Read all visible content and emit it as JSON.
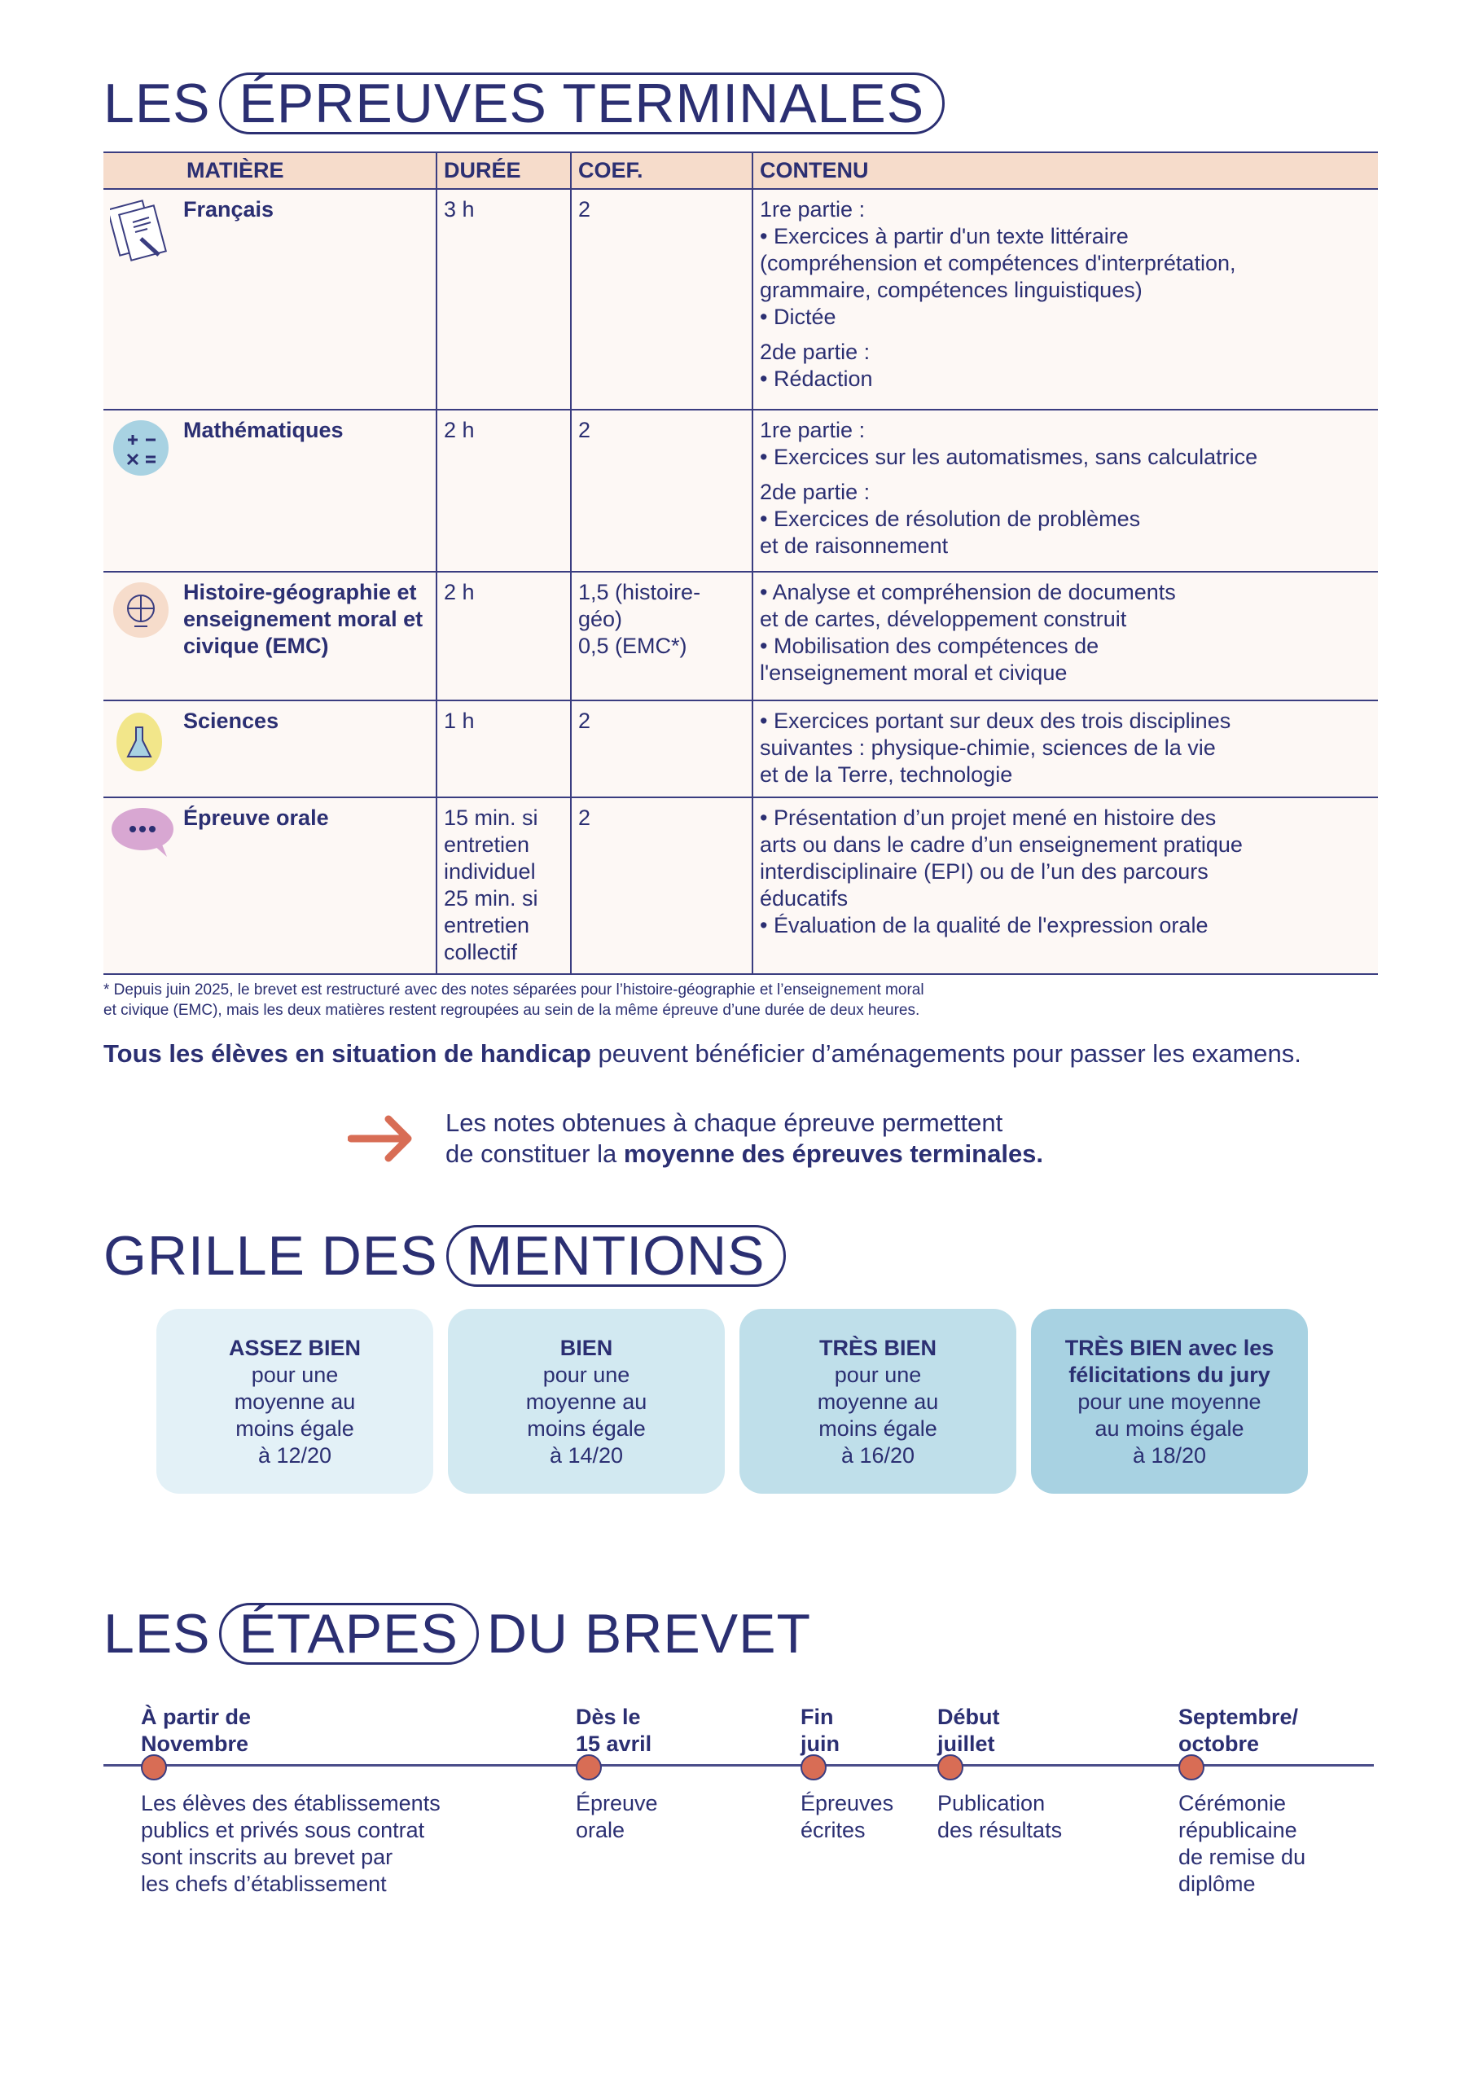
{
  "section1": {
    "prefix": "LES",
    "pill": "ÉPREUVES TERMINALES"
  },
  "table": {
    "headers": [
      "MATIÈRE",
      "DURÉE",
      "COEF.",
      "CONTENU"
    ],
    "rows": [
      {
        "icon": "document-pencil-icon",
        "subject": "Français",
        "duree": [
          "3 h"
        ],
        "coef": [
          "2"
        ],
        "content": [
          [
            "1re partie :",
            "• Exercices à partir d'un texte littéraire",
            "(compréhension et compétences d'interprétation,",
            "grammaire, compétences linguistiques)",
            "• Dictée"
          ],
          [
            "2de partie :",
            "• Rédaction"
          ]
        ]
      },
      {
        "icon": "math-operators-icon",
        "subject": "Mathématiques",
        "duree": [
          "2 h"
        ],
        "coef": [
          "2"
        ],
        "content": [
          [
            "1re partie :",
            "• Exercices sur les automatismes, sans calculatrice"
          ],
          [
            "2de partie :",
            "• Exercices de résolution de problèmes",
            "et de raisonnement"
          ]
        ]
      },
      {
        "icon": "globe-icon",
        "subject": "Histoire-géographie et enseignement moral et civique (EMC)",
        "duree": [
          "2 h"
        ],
        "coef": [
          "1,5 (histoire-",
          "géo)",
          "0,5 (EMC*)"
        ],
        "content": [
          [
            "• Analyse et compréhension de documents",
            "et de cartes, développement construit",
            "• Mobilisation des compétences de",
            "l'enseignement moral et civique"
          ]
        ]
      },
      {
        "icon": "flask-icon",
        "subject": "Sciences",
        "duree": [
          "1 h"
        ],
        "coef": [
          "2"
        ],
        "content": [
          [
            "• Exercices portant sur deux des trois disciplines",
            "suivantes : physique-chimie, sciences de la vie",
            "et de la Terre, technologie"
          ]
        ]
      },
      {
        "icon": "speech-bubble-icon",
        "subject": "Épreuve orale",
        "duree": [
          "15 min. si",
          "entretien",
          "individuel",
          "25 min. si",
          "entretien",
          "collectif"
        ],
        "coef": [
          "2"
        ],
        "content": [
          [
            "• Présentation d’un projet mené en histoire des",
            "arts ou dans le cadre d’un enseignement pratique",
            "interdisciplinaire (EPI) ou de l’un des parcours",
            "éducatifs",
            "• Évaluation de la qualité de l'expression orale"
          ]
        ]
      }
    ]
  },
  "footnote": [
    "* Depuis juin 2025, le brevet est restructuré avec des notes séparées pour l’histoire-géographie et l’enseignement moral",
    "et civique (EMC), mais les deux matières restent regroupées au sein de la même épreuve d’une durée de deux heures."
  ],
  "handicap": {
    "bold": "Tous les élèves en situation de handicap",
    "rest": " peuvent bénéficier d’aménagements pour passer les examens."
  },
  "note": {
    "line1": "Les notes obtenues à chaque épreuve permettent",
    "line2_pre": "de constituer la ",
    "line2_bold": "moyenne des épreuves terminales."
  },
  "section2": {
    "prefix": "GRILLE DES",
    "pill": "MENTIONS"
  },
  "mentions": [
    {
      "title": "ASSEZ BIEN",
      "lines": [
        "pour une",
        "moyenne au",
        "moins égale",
        "à 12/20"
      ],
      "color": "#e3f1f7"
    },
    {
      "title": "BIEN",
      "lines": [
        "pour une",
        "moyenne au",
        "moins égale",
        "à 14/20"
      ],
      "color": "#d2e9f1"
    },
    {
      "title": "TRÈS BIEN",
      "lines": [
        "pour une",
        "moyenne au",
        "moins égale",
        "à 16/20"
      ],
      "color": "#bfdfea"
    },
    {
      "title": "TRÈS BIEN avec les félicitations du jury",
      "lines": [
        "pour une moyenne",
        "au moins égale",
        "à 18/20"
      ],
      "color": "#a8d2e2"
    }
  ],
  "section3": {
    "prefix": "LES",
    "pill": "ÉTAPES",
    "suffix": "DU BREVET"
  },
  "timeline": [
    {
      "label": [
        "À partir de",
        "Novembre"
      ],
      "desc": [
        "Les élèves des établissements",
        "publics et privés sous contrat",
        "sont inscrits au brevet par",
        "les chefs d’établissement"
      ]
    },
    {
      "label": [
        "Dès le",
        "15 avril"
      ],
      "desc": [
        "Épreuve",
        "orale"
      ]
    },
    {
      "label": [
        "Fin",
        "juin"
      ],
      "desc": [
        "Épreuves",
        "écrites"
      ]
    },
    {
      "label": [
        "Début",
        "juillet"
      ],
      "desc": [
        "Publication",
        "des résultats"
      ]
    },
    {
      "label": [
        "Septembre/",
        "octobre"
      ],
      "desc": [
        "Cérémonie",
        "républicaine",
        "de remise du",
        "diplôme"
      ]
    }
  ]
}
